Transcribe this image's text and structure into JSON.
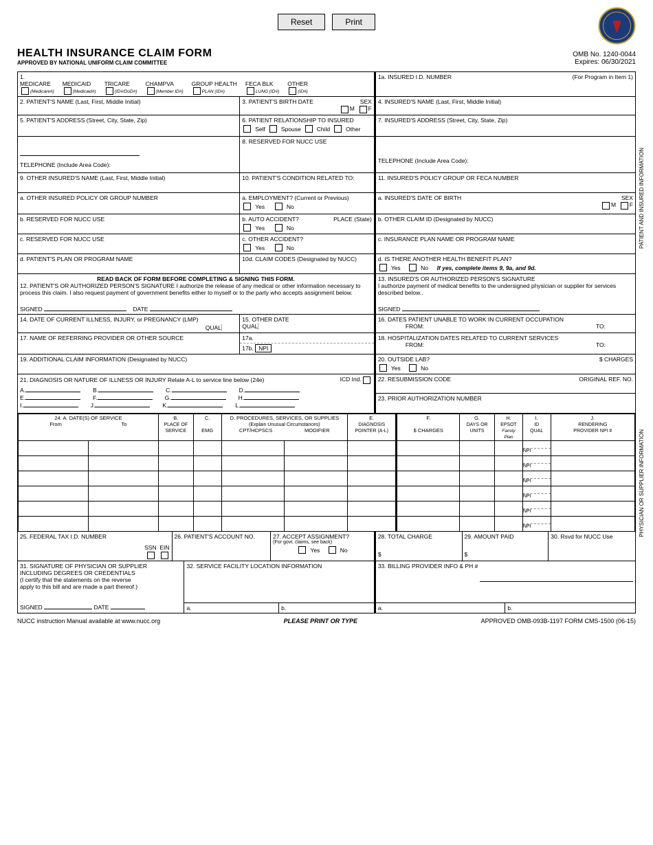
{
  "buttons": {
    "reset": "Reset",
    "print": "Print"
  },
  "header": {
    "title": "HEALTH INSURANCE CLAIM FORM",
    "subtitle": "APPROVED BY NATIONAL UNIFORM CLAIM COMMITTEE",
    "omb": "OMB No. 1240-0044",
    "expires": "Expires:  06/30/2021"
  },
  "box1": {
    "num": "1.",
    "medicare": "MEDICARE",
    "medicare_sub": "(Medicare#)",
    "medicaid": "MEDICAID",
    "medicaid_sub": "(Medicaid#)",
    "tricare": "TRICARE",
    "tricare_sub": "(ID#/DoD#)",
    "champva": "CHAMPVA",
    "champva_sub": "(Member ID#)",
    "group": "GROUP HEALTH",
    "group_sub": "PLAN (ID#)",
    "feca": "FECA BLK",
    "feca_sub": "LUNG (ID#)",
    "other": "OTHER",
    "other_sub": "(ID#)"
  },
  "box1a": {
    "label": "1a. INSURED I.D. NUMBER",
    "prog": "(For Program in Item 1)"
  },
  "box2": "2. PATIENT'S NAME (Last, First, Middle Initial)",
  "box3": {
    "label": "3. PATIENT'S BIRTH DATE",
    "sex": "SEX",
    "m": "M",
    "f": "F"
  },
  "box4": "4. INSURED'S NAME (Last, First, Middle Initial)",
  "box5": "5. PATIENT'S ADDRESS (Street, City, State, Zip)",
  "box6": {
    "label": "6. PATIENT RELATIONSHIP TO INSURED",
    "self": "Self",
    "spouse": "Spouse",
    "child": "Child",
    "other": "Other"
  },
  "box7": "7. INSURED'S ADDRESS (Street, City, State, Zip)",
  "box8": "8. RESERVED FOR NUCC USE",
  "tel": "TELEPHONE (Include Area Code):",
  "box9": "9. OTHER INSURED'S NAME (Last, First, Middle Initial)",
  "box10": "10. PATIENT'S CONDITION RELATED TO:",
  "box11": "11. INSURED'S POLICY GROUP OR FECA NUMBER",
  "box9a": "a. OTHER INSURED POLICY OR GROUP NUMBER",
  "box10a": {
    "label": "a. EMPLOYMENT? (Current or Previous)",
    "yes": "Yes",
    "no": "No"
  },
  "box11a": {
    "label": "a. INSURED'S DATE OF BIRTH",
    "sex": "SEX",
    "m": "M",
    "f": "F"
  },
  "box9b": "b. RESERVED FOR NUCC USE",
  "box10b": {
    "label": "b. AUTO ACCIDENT?",
    "place": "PLACE (State)"
  },
  "box11b": "b. OTHER CLAIM ID (Designated by NUCC)",
  "box9c": "c. RESERVED FOR NUCC USE",
  "box10c": "c. OTHER ACCIDENT?",
  "box11c": "c. INSURANCE PLAN NAME OR PROGRAM NAME",
  "box9d": "d. PATIENT'S PLAN OR PROGRAM NAME",
  "box10d": "10d. CLAIM CODES (Designated by NUCC)",
  "box11d": {
    "label": "d. IS THERE ANOTHER HEALTH BENEFIT PLAN?",
    "ifyes": "If yes, complete items 9, 9a, and 9d."
  },
  "box12": {
    "bold": "READ BACK OF FORM BEFORE COMPLETING & SIGNING THIS FORM.",
    "text": "12. PATIENT'S OR AUTHORIZED PERSON'S SIGNATURE I authorize the release of any medical or other information necessary to process this claim. I also request payment of government benefits either to myself or to the party who accepts assignment below.",
    "signed": "SIGNED",
    "date": "DATE"
  },
  "box13": {
    "label": "13. INSURED'S OR AUTHORIZED PERSON'S SIGNATURE",
    "text": "I authorize payment of medical benefits to the undersigned physician or supplier for services described below..",
    "signed": "SIGNED"
  },
  "box14": {
    "label": "14. DATE OF CURRENT ILLNESS, INJURY, or PREGNANCY (LMP)",
    "qual": "QUAL"
  },
  "box15": {
    "label": "15. OTHER DATE",
    "qual": "QUAL"
  },
  "box16": {
    "label": "16. DATES PATIENT UNABLE TO WORK IN CURRENT OCCUPATION",
    "from": "FROM:",
    "to": "TO:"
  },
  "box17": {
    "label": "17. NAME OF REFERRING PROVIDER OR OTHER SOURCE",
    "a": "17a.",
    "b": "17b.",
    "npi": "NPI"
  },
  "box18": {
    "label": "18. HOSPITALIZATION DATES RELATED TO CURRENT SERVICES",
    "from": "FROM:",
    "to": "TO:"
  },
  "box19": "19. ADDITIONAL CLAIM INFORMATION (Designated by NUCC)",
  "box20": {
    "label": "20. OUTSIDE LAB?",
    "charges": "$ CHARGES"
  },
  "box21": {
    "label": "21. DIAGNOSIS OR NATURE OF ILLNESS OR INJURY Relate A-L to service line below (24e)",
    "icd": "ICD Ind.",
    "a": "A.",
    "b": "B.",
    "c": "C.",
    "d": "D.",
    "e": "E.",
    "f": "F.",
    "g": "G.",
    "h": "H.",
    "i": "I.",
    "j": "J.",
    "k": "K.",
    "l": "L."
  },
  "box22": {
    "label": "22. RESUBMISSION CODE",
    "orig": "ORIGINAL REF. NO."
  },
  "box23": "23. PRIOR AUTHORIZATION NUMBER",
  "box24": {
    "a": "24. A. DATE(S) OF SERVICE",
    "from": "From",
    "to": "To",
    "b": "B.",
    "b2": "PLACE OF",
    "b3": "SERVICE",
    "c": "C.",
    "c2": "EMG",
    "d": "D. PROCEDURES, SERVICES, OR SUPPLIES",
    "d2": "(Explain Unusual Circumstances)",
    "d3": "CPT/HCPSCS",
    "d4": "MODIFIER",
    "e": "E.",
    "e2": "DIAGNOSIS",
    "e3": "POINTER (A-L)",
    "f": "F.",
    "f2": "$ CHARGES",
    "g": "G.",
    "g2": "DAYS OR",
    "g3": "UNITS",
    "h": "H.",
    "h2": "EPSOT",
    "h3": "Family",
    "h4": "Plan",
    "i": "I.",
    "i2": "ID",
    "i3": "QUAL",
    "j": "J.",
    "j2": "RENDERING",
    "j3": "PROVIDER NPI #",
    "npi": "NPI"
  },
  "box25": {
    "label": "25. FEDERAL TAX I.D. NUMBER",
    "ssn": "SSN",
    "ein": "EIN"
  },
  "box26": "26. PATIENT'S ACCOUNT NO.",
  "box27": {
    "label": "27. ACCEPT ASSIGNMENT?",
    "sub": "(For govt. claims, see back)"
  },
  "box28": "28. TOTAL CHARGE",
  "box29": "29. AMOUNT PAID",
  "box30": "30. Rsvd for NUCC Use",
  "box31": {
    "label": "31. SIGNATURE OF PHYSICIAN OR SUPPLIER",
    "l2": "INCLUDING DEGREES OR CREDENTIALS",
    "l3": "(I certify that the statements on the reverse",
    "l4": "apply to this bill and are made a part thereof.)",
    "signed": "SIGNED",
    "date": "DATE"
  },
  "box32": {
    "label": "32. SERVICE FACILITY LOCATION INFORMATION",
    "a": "a.",
    "b": "b."
  },
  "box33": {
    "label": "33. BILLING PROVIDER INFO & PH #",
    "a": "a.",
    "b": "b."
  },
  "yn": {
    "yes": "Yes",
    "no": "No"
  },
  "dollar": "$",
  "sidelabels": {
    "patient": "PATIENT AND INSURED INFORMATION",
    "supplier": "PHYSICIAN OR SUPPLIER INFORMATION"
  },
  "footer": {
    "nucc": "NUCC instruction Manual available at www.nucc.org",
    "print": "PLEASE PRINT OR TYPE",
    "approved": "APPROVED OMB-093B-1197 FORM CMS-1500 (06-15)"
  }
}
